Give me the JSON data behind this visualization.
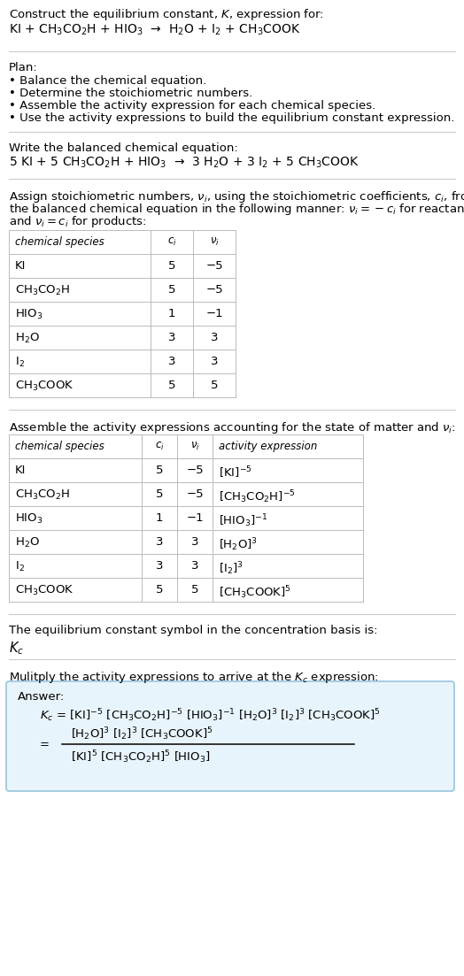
{
  "title_line1": "Construct the equilibrium constant, $K$, expression for:",
  "title_line2": "KI + CH$_3$CO$_2$H + HIO$_3$  →  H$_2$O + I$_2$ + CH$_3$COOK",
  "plan_header": "Plan:",
  "plan_bullets": [
    "• Balance the chemical equation.",
    "• Determine the stoichiometric numbers.",
    "• Assemble the activity expression for each chemical species.",
    "• Use the activity expressions to build the equilibrium constant expression."
  ],
  "balanced_header": "Write the balanced chemical equation:",
  "balanced_eq": "5 KI + 5 CH$_3$CO$_2$H + HIO$_3$  →  3 H$_2$O + 3 I$_2$ + 5 CH$_3$COOK",
  "stoich_intro_lines": [
    "Assign stoichiometric numbers, $\\nu_i$, using the stoichiometric coefficients, $c_i$, from",
    "the balanced chemical equation in the following manner: $\\nu_i = -c_i$ for reactants",
    "and $\\nu_i = c_i$ for products:"
  ],
  "table1_headers": [
    "chemical species",
    "$c_i$",
    "$\\nu_i$"
  ],
  "table1_rows": [
    [
      "KI",
      "5",
      "−5"
    ],
    [
      "CH$_3$CO$_2$H",
      "5",
      "−5"
    ],
    [
      "HIO$_3$",
      "1",
      "−1"
    ],
    [
      "H$_2$O",
      "3",
      "3"
    ],
    [
      "I$_2$",
      "3",
      "3"
    ],
    [
      "CH$_3$COOK",
      "5",
      "5"
    ]
  ],
  "activity_intro": "Assemble the activity expressions accounting for the state of matter and $\\nu_i$:",
  "table2_headers": [
    "chemical species",
    "$c_i$",
    "$\\nu_i$",
    "activity expression"
  ],
  "table2_rows": [
    [
      "KI",
      "5",
      "−5",
      "[KI]$^{-5}$"
    ],
    [
      "CH$_3$CO$_2$H",
      "5",
      "−5",
      "[CH$_3$CO$_2$H]$^{-5}$"
    ],
    [
      "HIO$_3$",
      "1",
      "−1",
      "[HIO$_3$]$^{-1}$"
    ],
    [
      "H$_2$O",
      "3",
      "3",
      "[H$_2$O]$^3$"
    ],
    [
      "I$_2$",
      "3",
      "3",
      "[I$_2$]$^3$"
    ],
    [
      "CH$_3$COOK",
      "5",
      "5",
      "[CH$_3$COOK]$^5$"
    ]
  ],
  "kc_intro": "The equilibrium constant symbol in the concentration basis is:",
  "kc_symbol": "$K_c$",
  "multiply_intro": "Mulitply the activity expressions to arrive at the $K_c$ expression:",
  "answer_label": "Answer:",
  "bg_color": "#ffffff",
  "text_color": "#000000",
  "sep_color": "#cccccc",
  "table_line_color": "#bbbbbb",
  "answer_box_facecolor": "#e8f4fb",
  "answer_box_edgecolor": "#99c4de",
  "fontsize": 9.5
}
